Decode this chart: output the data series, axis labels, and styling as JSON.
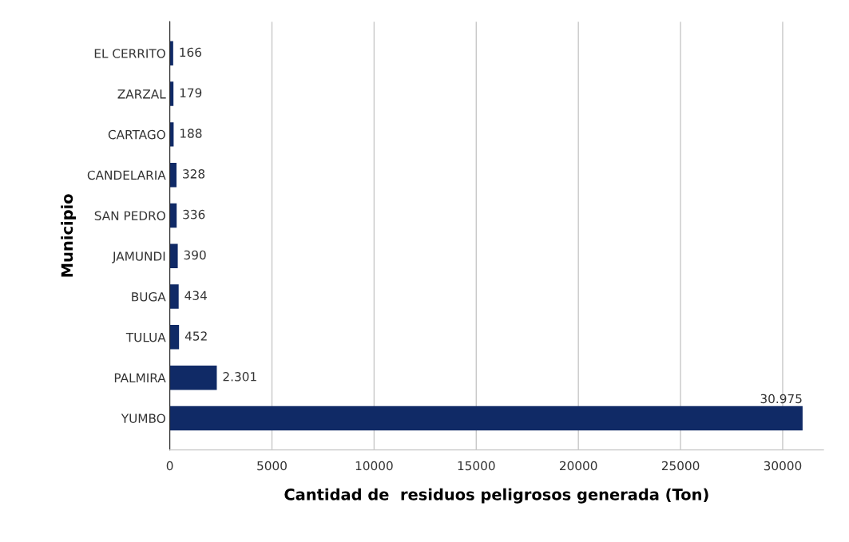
{
  "chart_data": {
    "type": "bar",
    "orientation": "horizontal",
    "xlabel": "Cantidad de  residuos peligrosos generada (Ton)",
    "ylabel": "Municipio",
    "categories": [
      "EL CERRITO",
      "ZARZAL",
      "CARTAGO",
      "CANDELARIA",
      "SAN PEDRO",
      "JAMUNDI",
      "BUGA",
      "TULUA",
      "PALMIRA",
      "YUMBO"
    ],
    "values": [
      166,
      179,
      188,
      328,
      336,
      390,
      434,
      452,
      2301,
      30975
    ],
    "value_labels": [
      "166",
      "179",
      "188",
      "328",
      "336",
      "390",
      "434",
      "452",
      "2.301",
      "30.975"
    ],
    "color": "#102a66",
    "xlim": [
      0,
      32000
    ],
    "xticks": [
      0,
      5000,
      10000,
      15000,
      20000,
      25000,
      30000
    ],
    "grid": "x"
  }
}
